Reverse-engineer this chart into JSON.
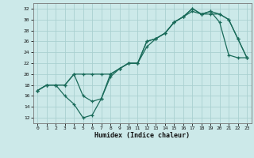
{
  "bg_color": "#cce9e9",
  "grid_color": "#aad0d0",
  "line_color": "#1a6b5a",
  "xlabel": "Humidex (Indice chaleur)",
  "xlim": [
    -0.5,
    23.5
  ],
  "ylim": [
    11,
    33
  ],
  "xticks": [
    0,
    1,
    2,
    3,
    4,
    5,
    6,
    7,
    8,
    9,
    10,
    11,
    12,
    13,
    14,
    15,
    16,
    17,
    18,
    19,
    20,
    21,
    22,
    23
  ],
  "yticks": [
    12,
    14,
    16,
    18,
    20,
    22,
    24,
    26,
    28,
    30,
    32
  ],
  "line1_x": [
    0,
    1,
    2,
    3,
    4,
    5,
    6,
    7,
    8,
    9,
    10,
    11,
    12,
    13,
    14,
    15,
    16,
    17,
    18,
    19,
    20,
    21,
    22,
    23
  ],
  "line1_y": [
    17,
    18,
    18,
    18,
    20,
    20,
    20,
    20,
    20,
    21,
    22,
    22,
    26,
    26.5,
    27.5,
    29.5,
    30.5,
    31.5,
    31,
    31,
    31,
    30,
    26.5,
    23
  ],
  "line2_x": [
    0,
    1,
    2,
    3,
    4,
    5,
    6,
    7,
    8,
    9,
    10,
    11,
    12,
    13,
    14,
    15,
    16,
    17,
    18,
    19,
    20,
    21,
    22,
    23
  ],
  "line2_y": [
    17,
    18,
    18,
    18,
    20,
    16,
    15,
    15.5,
    20,
    21,
    22,
    22,
    25,
    26.5,
    27.5,
    29.5,
    30.5,
    32,
    31,
    31.5,
    29.5,
    23.5,
    23,
    23
  ],
  "line3_x": [
    0,
    1,
    2,
    3,
    4,
    5,
    6,
    7,
    8,
    9,
    10,
    11,
    12,
    13,
    14,
    15,
    16,
    17,
    18,
    19,
    20,
    21,
    22,
    23
  ],
  "line3_y": [
    17,
    18,
    18,
    16,
    14.5,
    12,
    12.5,
    15.5,
    19.5,
    21,
    22,
    22,
    26,
    26.5,
    27.5,
    29.5,
    30.5,
    32,
    31,
    31.5,
    31,
    30,
    26.5,
    23
  ]
}
